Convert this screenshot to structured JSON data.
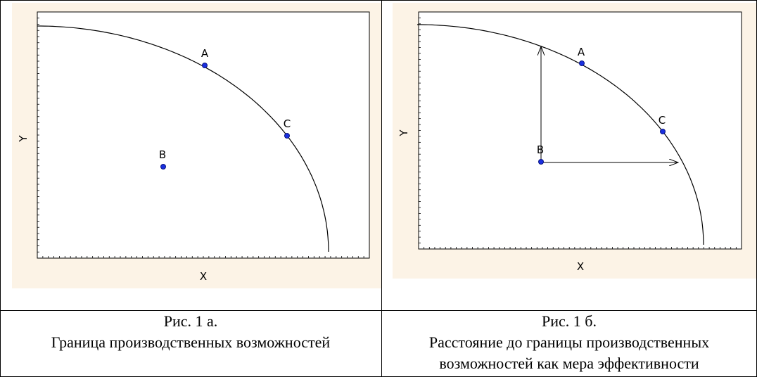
{
  "figures": [
    {
      "id": "fig-1a",
      "x_label": "X",
      "y_label": "Y",
      "points": [
        {
          "name": "A",
          "label": "A"
        },
        {
          "name": "B",
          "label": "B"
        },
        {
          "name": "C",
          "label": "C"
        }
      ],
      "caption_line1": "Рис. 1 а.",
      "caption_line2": "Граница производственных возможностей",
      "caption_line3": ""
    },
    {
      "id": "fig-1b",
      "x_label": "X",
      "y_label": "Y",
      "points": [
        {
          "name": "A",
          "label": "A"
        },
        {
          "name": "B",
          "label": "B"
        },
        {
          "name": "C",
          "label": "C"
        }
      ],
      "arrows": [
        "B-to-up",
        "B-to-right"
      ],
      "caption_line1": "Рис. 1 б.",
      "caption_line2": "Расстояние до границы производственных",
      "caption_line3": "возможностей как мера эффективности"
    }
  ],
  "colors": {
    "panel_background": "#fcf3e6",
    "point_fill": "#1a2fe0",
    "point_stroke": "#0a1580",
    "curve": "#000000",
    "border": "#000000"
  }
}
